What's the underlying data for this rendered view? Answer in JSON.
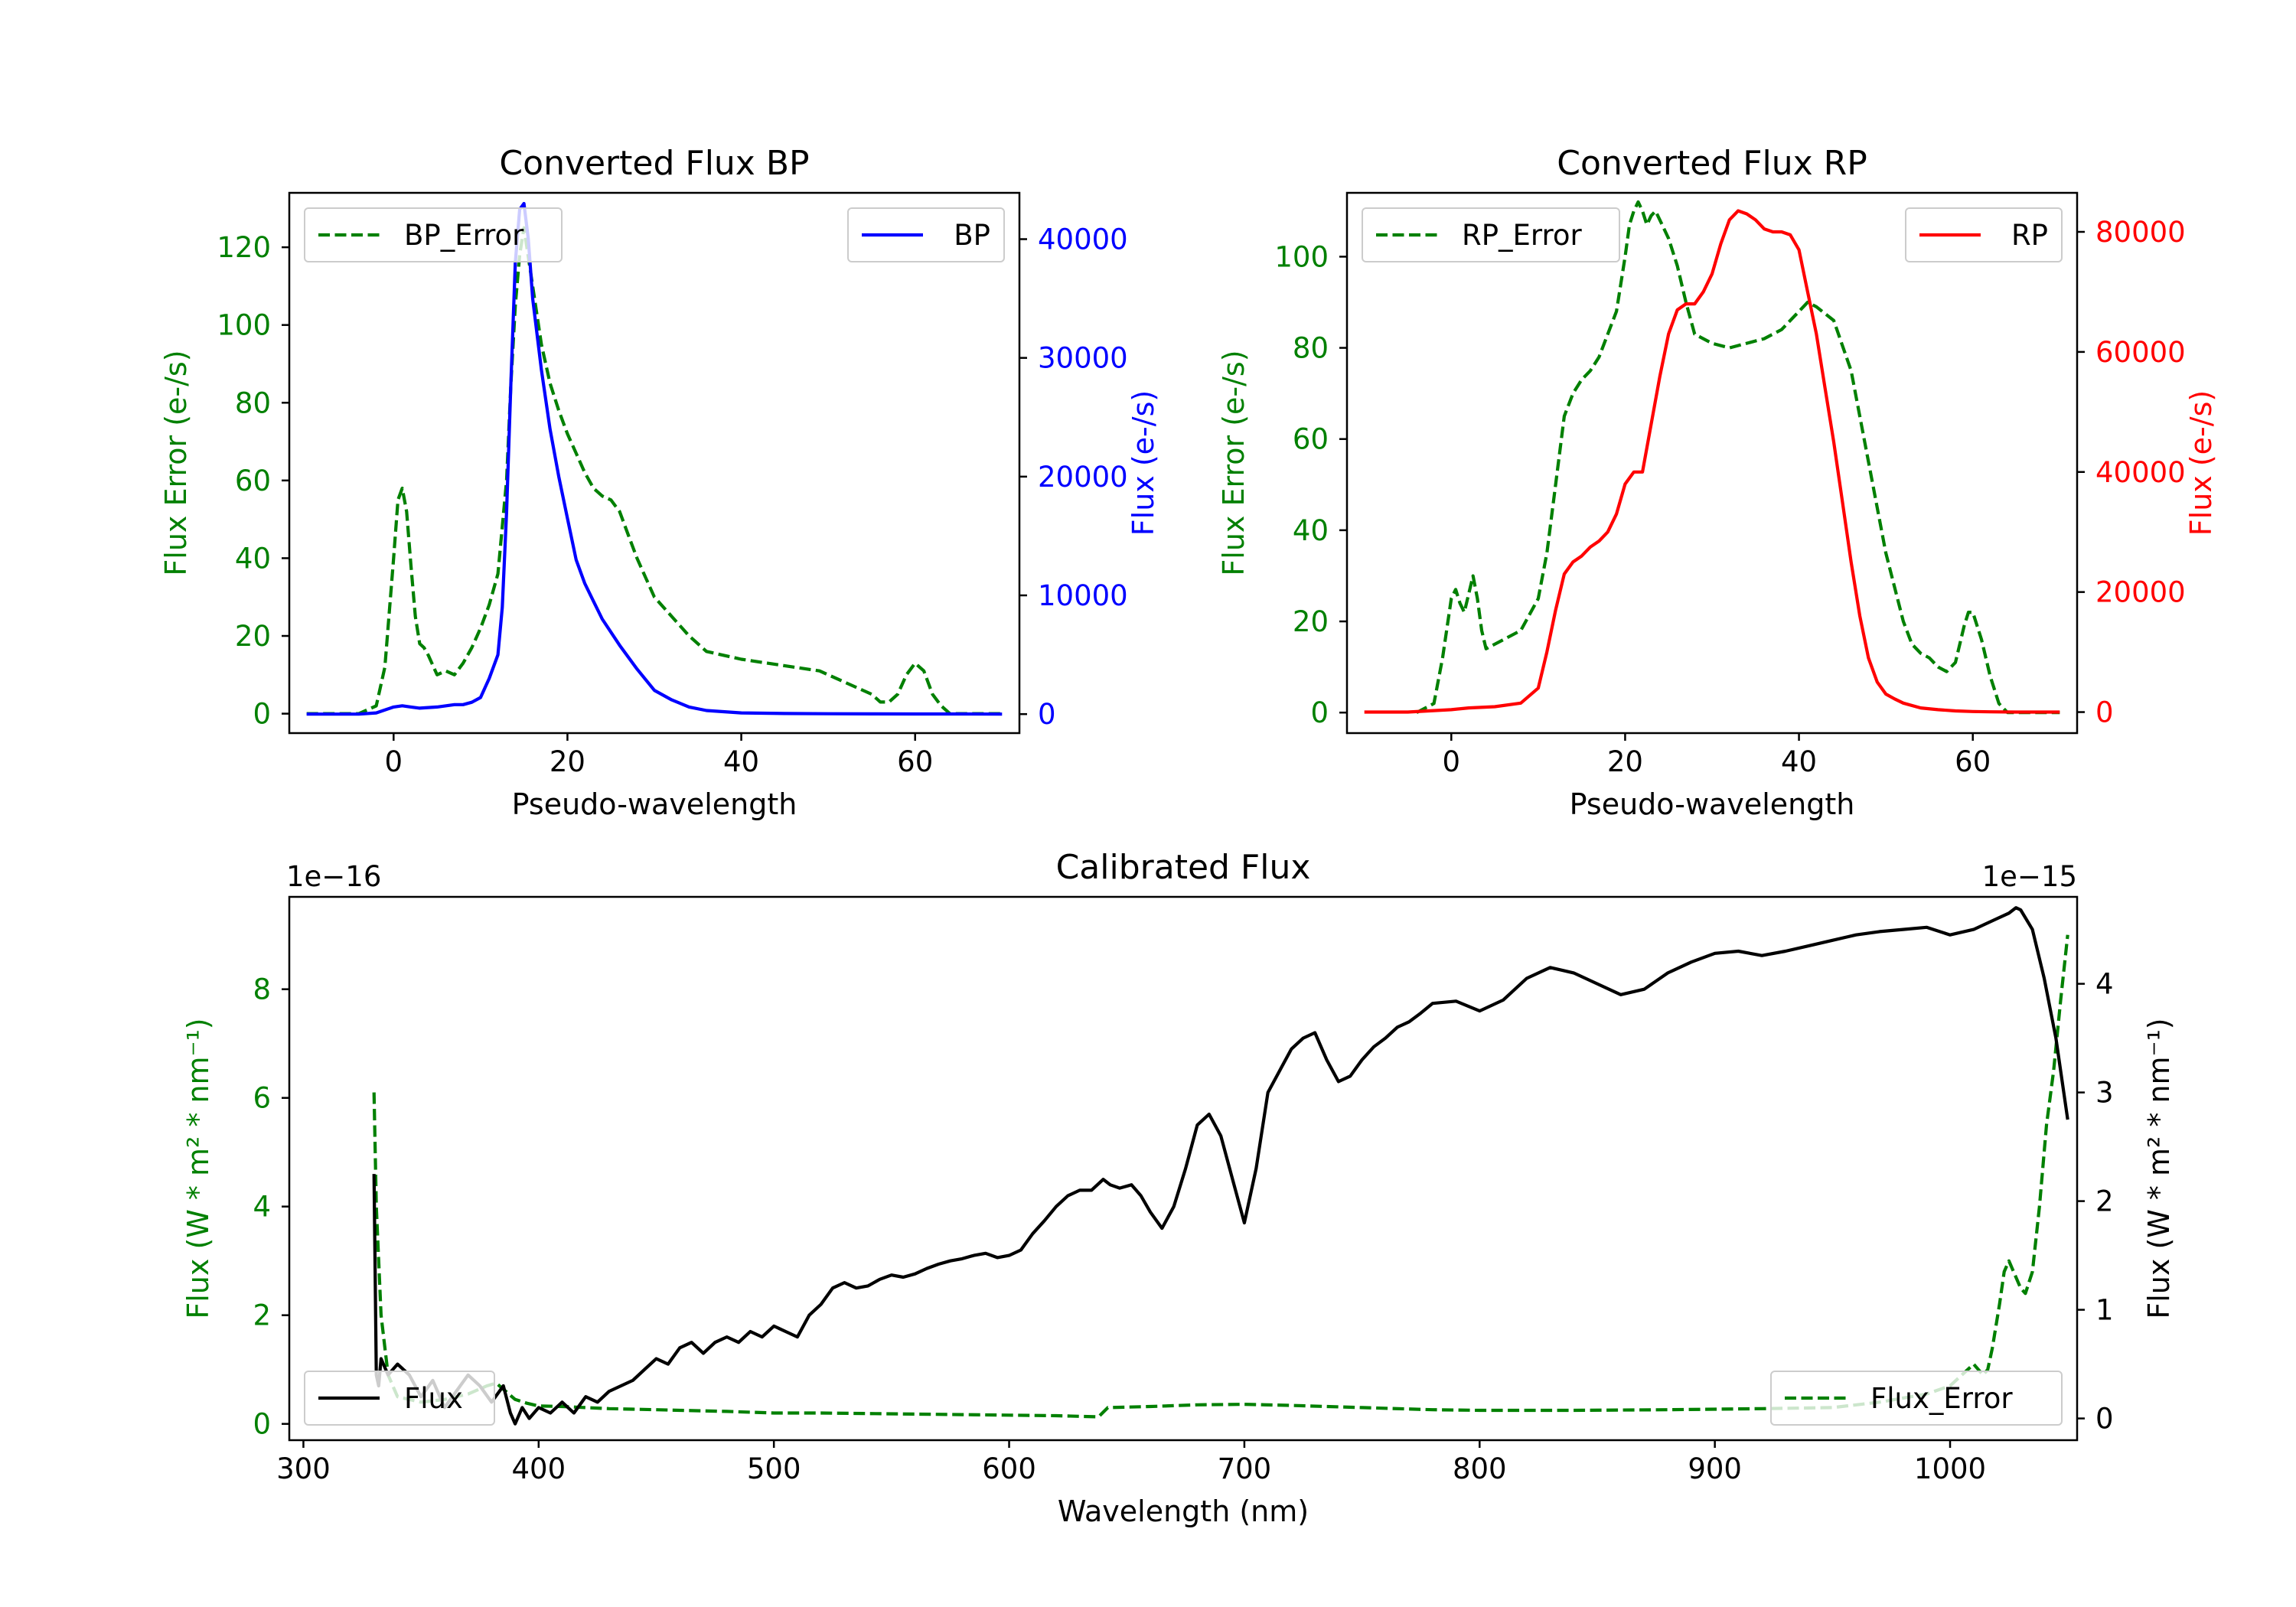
{
  "chart_data": [
    {
      "id": "bp",
      "type": "line",
      "title": "Converted Flux BP",
      "xlabel": "Pseudo-wavelength",
      "ylabel_left": "Flux Error (e-/s)",
      "ylabel_right": "Flux (e-/s)",
      "xlim": [
        -12,
        72
      ],
      "ylim_left": [
        -5,
        134
      ],
      "ylim_right": [
        -1600,
        43900
      ],
      "xticks": [
        0,
        20,
        40,
        60
      ],
      "yticks_left": [
        0,
        20,
        40,
        60,
        80,
        100,
        120
      ],
      "yticks_right": [
        0,
        10000,
        20000,
        30000,
        40000
      ],
      "ytick_labels_left": [
        "0",
        "20",
        "40",
        "60",
        "80",
        "100",
        "120"
      ],
      "ytick_labels_right": [
        "0",
        "10000",
        "20000",
        "30000",
        "40000"
      ],
      "colors": {
        "left_axis": "#008000",
        "right_axis": "#0000ff"
      },
      "legend": [
        {
          "label": "BP_Error",
          "position": "upper-left",
          "style": "dashed",
          "color": "#008000"
        },
        {
          "label": "BP",
          "position": "upper-right",
          "style": "solid",
          "color": "#0000ff"
        }
      ],
      "series": [
        {
          "name": "BP_Error",
          "axis": "left",
          "style": "dashed",
          "color": "#008000",
          "x": [
            -10,
            -6,
            -4,
            -2,
            -1,
            0,
            0.5,
            1,
            1.5,
            2,
            2.5,
            3,
            3.5,
            4,
            5,
            6,
            7,
            8,
            9,
            10,
            11,
            12,
            13,
            13.5,
            14,
            14.5,
            15,
            16,
            17,
            18,
            19,
            20,
            21,
            22,
            23,
            24,
            25,
            26,
            27,
            28,
            29,
            30,
            32,
            34,
            36,
            38,
            40,
            43,
            46,
            49,
            52,
            55,
            56,
            57,
            58,
            59,
            60,
            61,
            62,
            63,
            64,
            66,
            68,
            70
          ],
          "y": [
            0,
            0,
            0,
            2,
            12,
            40,
            55,
            58,
            52,
            38,
            25,
            18,
            17,
            15,
            10,
            11,
            10,
            13,
            17,
            22,
            28,
            36,
            60,
            85,
            105,
            118,
            125,
            110,
            95,
            85,
            78,
            72,
            67,
            62,
            58,
            56,
            55,
            52,
            46,
            40,
            35,
            30,
            25,
            20,
            16,
            15,
            14,
            13,
            12,
            11,
            8,
            5,
            3,
            3,
            5,
            10,
            13,
            11,
            5,
            2,
            0,
            0,
            0,
            0
          ]
        },
        {
          "name": "BP",
          "axis": "right",
          "style": "solid",
          "color": "#0000ff",
          "x": [
            -10,
            -6,
            -4,
            -2,
            0,
            1,
            2,
            3,
            5,
            7,
            8,
            9,
            10,
            11,
            12,
            12.5,
            13,
            13.5,
            14,
            14.5,
            15,
            15.5,
            16,
            17,
            18,
            19,
            20,
            21,
            22,
            23,
            24,
            26,
            28,
            30,
            32,
            34,
            36,
            40,
            45,
            50,
            55,
            60,
            62,
            65,
            70
          ],
          "y": [
            0,
            0,
            0,
            100,
            600,
            700,
            600,
            500,
            600,
            800,
            800,
            1000,
            1400,
            3000,
            5000,
            9000,
            17000,
            28000,
            38000,
            42500,
            43000,
            40000,
            35000,
            29000,
            24000,
            20000,
            16500,
            13000,
            11000,
            9500,
            8000,
            5800,
            3800,
            2000,
            1200,
            600,
            300,
            100,
            50,
            30,
            20,
            10,
            10,
            10,
            0
          ]
        }
      ]
    },
    {
      "id": "rp",
      "type": "line",
      "title": "Converted Flux RP",
      "xlabel": "Pseudo-wavelength",
      "ylabel_left": "Flux Error (e-/s)",
      "ylabel_right": "Flux (e-/s)",
      "xlim": [
        -12,
        72
      ],
      "ylim_left": [
        -4.5,
        114
      ],
      "ylim_right": [
        -3500,
        86500
      ],
      "xticks": [
        0,
        20,
        40,
        60
      ],
      "yticks_left": [
        0,
        20,
        40,
        60,
        80,
        100
      ],
      "yticks_right": [
        0,
        20000,
        40000,
        60000,
        80000
      ],
      "ytick_labels_left": [
        "0",
        "20",
        "40",
        "60",
        "80",
        "100"
      ],
      "ytick_labels_right": [
        "0",
        "20000",
        "40000",
        "60000",
        "80000"
      ],
      "colors": {
        "left_axis": "#008000",
        "right_axis": "#ff0000"
      },
      "legend": [
        {
          "label": "RP_Error",
          "position": "upper-left",
          "style": "dashed",
          "color": "#008000"
        },
        {
          "label": "RP",
          "position": "upper-right",
          "style": "solid",
          "color": "#ff0000"
        }
      ],
      "series": [
        {
          "name": "RP_Error",
          "axis": "left",
          "style": "dashed",
          "color": "#008000",
          "x": [
            -4,
            -2,
            -1,
            0,
            0.5,
            1,
            1.5,
            2,
            2.5,
            3,
            3.5,
            4,
            5,
            6,
            8,
            10,
            11,
            12,
            13,
            14,
            15,
            16,
            17,
            18,
            19,
            20,
            20.5,
            21,
            21.5,
            22,
            22.5,
            23,
            23.5,
            24,
            25,
            26,
            27,
            28,
            30,
            32,
            34,
            36,
            38,
            40,
            41,
            42,
            44,
            46,
            48,
            50,
            52,
            53,
            54,
            55,
            56,
            57,
            58,
            58.5,
            59,
            59.5,
            60,
            61,
            62,
            63,
            64,
            66,
            70
          ],
          "y": [
            0,
            2,
            12,
            25,
            27,
            24,
            22,
            26,
            30,
            25,
            18,
            14,
            15,
            16,
            18,
            25,
            35,
            50,
            65,
            70,
            73,
            75,
            78,
            83,
            88,
            100,
            107,
            110,
            112,
            110,
            107,
            109,
            110,
            108,
            104,
            98,
            90,
            83,
            81,
            80,
            81,
            82,
            84,
            88,
            90,
            89,
            86,
            75,
            55,
            35,
            20,
            15,
            13,
            12,
            10,
            9,
            11,
            15,
            19,
            22,
            22,
            16,
            8,
            2,
            0,
            0,
            0
          ]
        },
        {
          "name": "RP",
          "axis": "right",
          "style": "solid",
          "color": "#ff0000",
          "x": [
            -10,
            -5,
            0,
            2,
            5,
            8,
            10,
            11,
            12,
            13,
            14,
            15,
            16,
            17,
            18,
            19,
            20,
            21,
            22,
            23,
            24,
            25,
            26,
            27,
            28,
            29,
            30,
            31,
            32,
            33,
            34,
            35,
            36,
            37,
            38,
            39,
            40,
            41,
            42,
            43,
            44,
            45,
            46,
            47,
            48,
            49,
            50,
            51,
            52,
            54,
            56,
            58,
            60,
            62,
            65,
            70
          ],
          "y": [
            0,
            0,
            400,
            700,
            900,
            1500,
            4000,
            10000,
            17000,
            23000,
            25000,
            26000,
            27500,
            28500,
            30000,
            33000,
            38000,
            40000,
            40000,
            48000,
            56000,
            63000,
            67000,
            68000,
            68000,
            70000,
            73000,
            78000,
            82000,
            83500,
            83000,
            82000,
            80500,
            80000,
            80000,
            79500,
            77000,
            70000,
            63000,
            54000,
            45000,
            35000,
            25000,
            16000,
            9000,
            5000,
            3000,
            2200,
            1500,
            700,
            400,
            200,
            100,
            50,
            0,
            0
          ]
        }
      ]
    },
    {
      "id": "calibrated",
      "type": "line",
      "title": "Calibrated Flux",
      "xlabel": "Wavelength (nm)",
      "ylabel_left": "Flux (W * m² * nm⁻¹)",
      "ylabel_right": "Flux (W * m² * nm⁻¹)",
      "offset_left": "1e−16",
      "offset_right": "1e−15",
      "xlim": [
        294,
        1054
      ],
      "ylim_left": [
        -0.3,
        9.7
      ],
      "ylim_right": [
        -0.2,
        4.8
      ],
      "xticks": [
        300,
        400,
        500,
        600,
        700,
        800,
        900,
        1000
      ],
      "yticks_left": [
        0,
        2,
        4,
        6,
        8
      ],
      "yticks_right": [
        0,
        1,
        2,
        3,
        4
      ],
      "ytick_labels_left": [
        "0",
        "2",
        "4",
        "6",
        "8"
      ],
      "ytick_labels_right": [
        "0",
        "1",
        "2",
        "3",
        "4"
      ],
      "colors": {
        "left_axis": "#008000",
        "right_axis": "#000000"
      },
      "legend": [
        {
          "label": "Flux",
          "position": "lower-left",
          "style": "solid",
          "color": "#000000"
        },
        {
          "label": "Flux_Error",
          "position": "lower-right",
          "style": "dashed",
          "color": "#008000"
        }
      ],
      "series": [
        {
          "name": "Flux_Error",
          "axis": "left",
          "style": "dashed",
          "color": "#008000",
          "x": [
            330,
            331,
            333,
            336,
            340,
            350,
            360,
            370,
            378,
            382,
            386,
            390,
            395,
            400,
            410,
            420,
            430,
            440,
            450,
            460,
            480,
            500,
            520,
            540,
            560,
            580,
            600,
            620,
            638,
            642,
            660,
            680,
            700,
            720,
            750,
            780,
            800,
            840,
            880,
            920,
            950,
            970,
            990,
            1000,
            1005,
            1010,
            1014,
            1016,
            1018,
            1021,
            1023,
            1025,
            1027,
            1030,
            1032,
            1035,
            1038,
            1041,
            1044,
            1047,
            1050
          ],
          "y": [
            6.1,
            4.0,
            2.0,
            0.9,
            0.5,
            0.4,
            0.45,
            0.55,
            0.7,
            0.75,
            0.6,
            0.45,
            0.38,
            0.33,
            0.32,
            0.3,
            0.28,
            0.27,
            0.26,
            0.25,
            0.23,
            0.2,
            0.2,
            0.19,
            0.18,
            0.17,
            0.16,
            0.15,
            0.13,
            0.3,
            0.32,
            0.35,
            0.36,
            0.34,
            0.3,
            0.26,
            0.25,
            0.25,
            0.26,
            0.28,
            0.3,
            0.4,
            0.55,
            0.7,
            0.9,
            1.1,
            0.9,
            1.0,
            1.4,
            2.2,
            2.8,
            3.0,
            2.8,
            2.5,
            2.4,
            2.8,
            4.0,
            5.5,
            6.5,
            7.8,
            9.0
          ]
        },
        {
          "name": "Flux",
          "axis": "right",
          "style": "solid",
          "color": "#000000",
          "x": [
            330,
            331,
            332,
            333,
            336,
            340,
            345,
            350,
            355,
            360,
            365,
            370,
            375,
            380,
            385,
            388,
            390,
            393,
            396,
            400,
            405,
            410,
            415,
            420,
            425,
            430,
            435,
            440,
            445,
            450,
            455,
            460,
            465,
            470,
            475,
            480,
            485,
            490,
            495,
            500,
            505,
            510,
            515,
            520,
            525,
            530,
            535,
            540,
            545,
            550,
            555,
            560,
            565,
            570,
            575,
            580,
            585,
            590,
            595,
            600,
            605,
            610,
            615,
            620,
            625,
            630,
            635,
            640,
            643,
            647,
            652,
            656,
            660,
            665,
            670,
            675,
            680,
            685,
            690,
            695,
            700,
            705,
            710,
            715,
            720,
            725,
            730,
            735,
            740,
            745,
            750,
            755,
            760,
            765,
            770,
            775,
            780,
            790,
            800,
            810,
            820,
            830,
            840,
            850,
            860,
            870,
            880,
            890,
            900,
            910,
            920,
            930,
            940,
            950,
            960,
            970,
            980,
            990,
            1000,
            1010,
            1015,
            1020,
            1025,
            1028,
            1030,
            1035,
            1040,
            1045,
            1050
          ],
          "y": [
            2.25,
            0.4,
            0.3,
            0.55,
            0.4,
            0.5,
            0.4,
            0.2,
            0.35,
            0.1,
            0.25,
            0.4,
            0.3,
            0.15,
            0.3,
            0.05,
            -0.05,
            0.1,
            0.0,
            0.1,
            0.05,
            0.15,
            0.05,
            0.2,
            0.15,
            0.25,
            0.3,
            0.35,
            0.45,
            0.55,
            0.5,
            0.65,
            0.7,
            0.6,
            0.7,
            0.75,
            0.7,
            0.8,
            0.75,
            0.85,
            0.8,
            0.75,
            0.95,
            1.05,
            1.2,
            1.25,
            1.2,
            1.22,
            1.28,
            1.32,
            1.3,
            1.33,
            1.38,
            1.42,
            1.45,
            1.47,
            1.5,
            1.52,
            1.48,
            1.5,
            1.55,
            1.7,
            1.82,
            1.95,
            2.05,
            2.1,
            2.1,
            2.2,
            2.15,
            2.12,
            2.15,
            2.05,
            1.9,
            1.75,
            1.95,
            2.3,
            2.7,
            2.8,
            2.6,
            2.2,
            1.8,
            2.3,
            3.0,
            3.2,
            3.4,
            3.5,
            3.55,
            3.3,
            3.1,
            3.15,
            3.3,
            3.42,
            3.5,
            3.6,
            3.65,
            3.73,
            3.82,
            3.84,
            3.75,
            3.85,
            4.05,
            4.15,
            4.1,
            4.0,
            3.9,
            3.95,
            4.1,
            4.2,
            4.28,
            4.3,
            4.26,
            4.3,
            4.35,
            4.4,
            4.45,
            4.48,
            4.5,
            4.52,
            4.45,
            4.5,
            4.55,
            4.6,
            4.65,
            4.7,
            4.68,
            4.5,
            4.05,
            3.5,
            2.75
          ]
        }
      ]
    }
  ]
}
